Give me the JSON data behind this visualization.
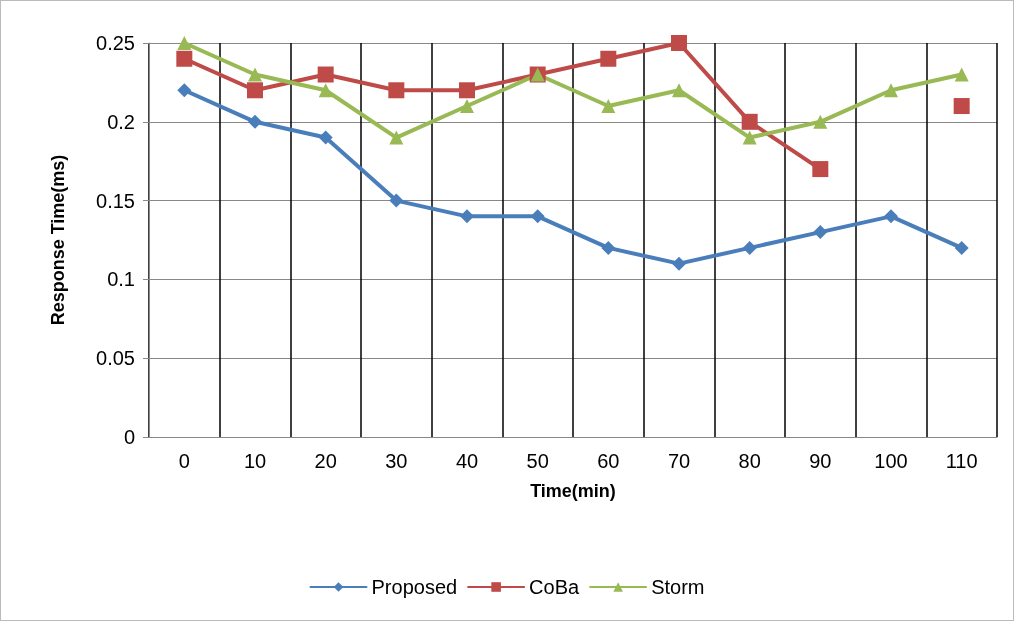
{
  "chart_data": {
    "type": "line",
    "xlabel": "Time(min)",
    "ylabel": "Response Time(ms)",
    "categories": [
      "0",
      "10",
      "20",
      "30",
      "40",
      "50",
      "60",
      "70",
      "80",
      "90",
      "100",
      "110"
    ],
    "series": [
      {
        "name": "Proposed",
        "color": "#4a7ebb",
        "marker": "diamond",
        "values": [
          0.22,
          0.2,
          0.19,
          0.15,
          0.14,
          0.14,
          0.12,
          0.11,
          0.12,
          0.13,
          0.14,
          0.12
        ]
      },
      {
        "name": "CoBa",
        "color": "#be4b48",
        "marker": "square",
        "values": [
          0.24,
          0.22,
          0.23,
          0.22,
          0.22,
          0.23,
          0.24,
          0.25,
          0.2,
          0.17,
          null,
          0.21
        ]
      },
      {
        "name": "Storm",
        "color": "#98b954",
        "marker": "triangle",
        "values": [
          0.25,
          0.23,
          0.22,
          0.19,
          0.21,
          0.23,
          0.21,
          0.22,
          0.19,
          0.2,
          0.22,
          0.23
        ]
      }
    ],
    "ylim": [
      0,
      0.25
    ],
    "yticks": [
      0,
      0.05,
      0.1,
      0.15,
      0.2,
      0.25
    ],
    "grid": true,
    "legend": "bottom",
    "line_style": "solid"
  }
}
